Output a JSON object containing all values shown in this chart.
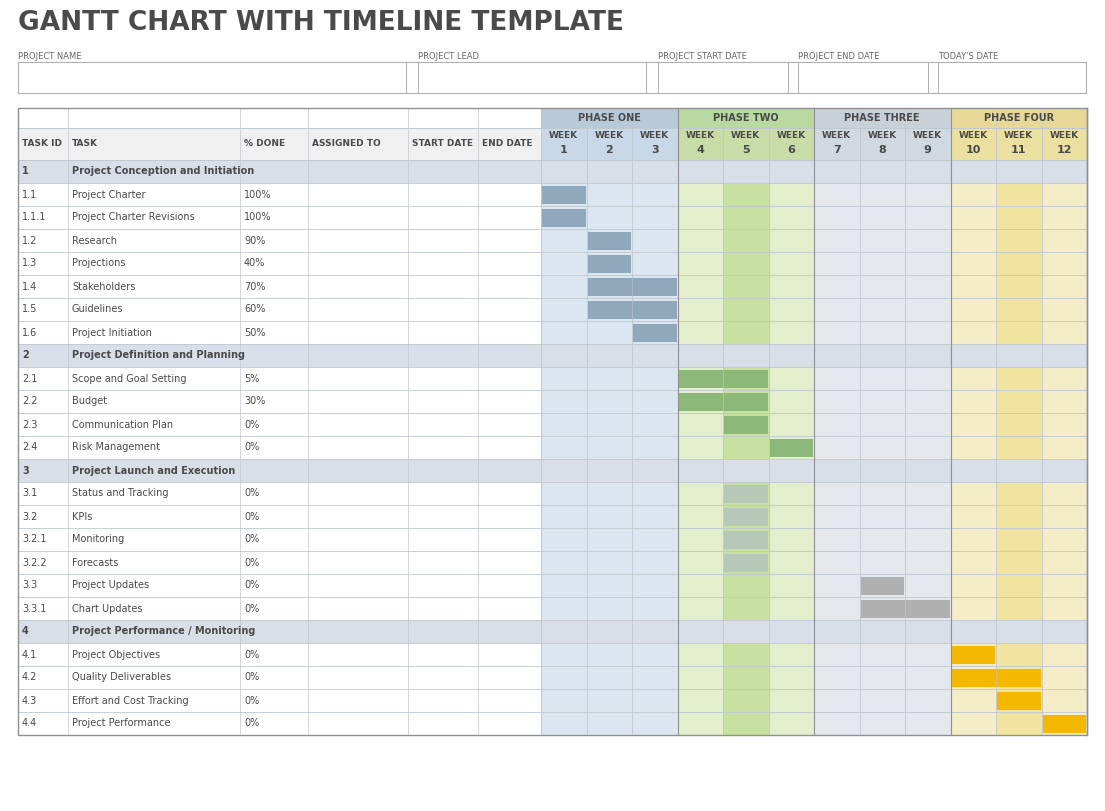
{
  "title": "GANTT CHART WITH TIMELINE TEMPLATE",
  "title_fontsize": 20,
  "title_color": "#3a3a3a",
  "header_labels": [
    "PROJECT NAME",
    "PROJECT LEAD",
    "PROJECT START DATE",
    "PROJECT END DATE",
    "TODAY’S DATE"
  ],
  "tasks": [
    {
      "id": "1",
      "task": "Project Conception and Initiation",
      "pct": "",
      "is_phase": true,
      "bar_week": null,
      "bar_span": 0,
      "bar_color": null
    },
    {
      "id": "1.1",
      "task": "Project Charter",
      "pct": "100%",
      "is_phase": false,
      "bar_week": 1,
      "bar_span": 1,
      "bar_color": "#8fa8bc"
    },
    {
      "id": "1.1.1",
      "task": "Project Charter Revisions",
      "pct": "100%",
      "is_phase": false,
      "bar_week": 1,
      "bar_span": 1,
      "bar_color": "#8fa8bc"
    },
    {
      "id": "1.2",
      "task": "Research",
      "pct": "90%",
      "is_phase": false,
      "bar_week": 2,
      "bar_span": 1,
      "bar_color": "#8fa8bc"
    },
    {
      "id": "1.3",
      "task": "Projections",
      "pct": "40%",
      "is_phase": false,
      "bar_week": 2,
      "bar_span": 1,
      "bar_color": "#8fa8bc"
    },
    {
      "id": "1.4",
      "task": "Stakeholders",
      "pct": "70%",
      "is_phase": false,
      "bar_week": 2,
      "bar_span": 2,
      "bar_color": "#8fa8bc"
    },
    {
      "id": "1.5",
      "task": "Guidelines",
      "pct": "60%",
      "is_phase": false,
      "bar_week": 2,
      "bar_span": 2,
      "bar_color": "#8fa8bc"
    },
    {
      "id": "1.6",
      "task": "Project Initiation",
      "pct": "50%",
      "is_phase": false,
      "bar_week": 3,
      "bar_span": 1,
      "bar_color": "#8fa8bc"
    },
    {
      "id": "2",
      "task": "Project Definition and Planning",
      "pct": "",
      "is_phase": true,
      "bar_week": null,
      "bar_span": 0,
      "bar_color": null
    },
    {
      "id": "2.1",
      "task": "Scope and Goal Setting",
      "pct": "5%",
      "is_phase": false,
      "bar_week": 4,
      "bar_span": 2,
      "bar_color": "#8cb87a"
    },
    {
      "id": "2.2",
      "task": "Budget",
      "pct": "30%",
      "is_phase": false,
      "bar_week": 4,
      "bar_span": 2,
      "bar_color": "#8cb87a"
    },
    {
      "id": "2.3",
      "task": "Communication Plan",
      "pct": "0%",
      "is_phase": false,
      "bar_week": 5,
      "bar_span": 1,
      "bar_color": "#8cb87a"
    },
    {
      "id": "2.4",
      "task": "Risk Management",
      "pct": "0%",
      "is_phase": false,
      "bar_week": 6,
      "bar_span": 1,
      "bar_color": "#8cb87a"
    },
    {
      "id": "3",
      "task": "Project Launch and Execution",
      "pct": "",
      "is_phase": true,
      "bar_week": null,
      "bar_span": 0,
      "bar_color": null
    },
    {
      "id": "3.1",
      "task": "Status and Tracking",
      "pct": "0%",
      "is_phase": false,
      "bar_week": 5,
      "bar_span": 1,
      "bar_color": "#b8c8b8"
    },
    {
      "id": "3.2",
      "task": "KPIs",
      "pct": "0%",
      "is_phase": false,
      "bar_week": 5,
      "bar_span": 1,
      "bar_color": "#b8c8b8"
    },
    {
      "id": "3.2.1",
      "task": "Monitoring",
      "pct": "0%",
      "is_phase": false,
      "bar_week": 5,
      "bar_span": 1,
      "bar_color": "#b8c8b8"
    },
    {
      "id": "3.2.2",
      "task": "Forecasts",
      "pct": "0%",
      "is_phase": false,
      "bar_week": 5,
      "bar_span": 1,
      "bar_color": "#b8c8b8"
    },
    {
      "id": "3.3",
      "task": "Project Updates",
      "pct": "0%",
      "is_phase": false,
      "bar_week": 8,
      "bar_span": 1,
      "bar_color": "#b0b0b0"
    },
    {
      "id": "3.3.1",
      "task": "Chart Updates",
      "pct": "0%",
      "is_phase": false,
      "bar_week": 8,
      "bar_span": 2,
      "bar_color": "#b0b0b0"
    },
    {
      "id": "4",
      "task": "Project Performance / Monitoring",
      "pct": "",
      "is_phase": true,
      "bar_week": null,
      "bar_span": 0,
      "bar_color": null
    },
    {
      "id": "4.1",
      "task": "Project Objectives",
      "pct": "0%",
      "is_phase": false,
      "bar_week": 10,
      "bar_span": 1,
      "bar_color": "#f5b800"
    },
    {
      "id": "4.2",
      "task": "Quality Deliverables",
      "pct": "0%",
      "is_phase": false,
      "bar_week": 10,
      "bar_span": 2,
      "bar_color": "#f5b800"
    },
    {
      "id": "4.3",
      "task": "Effort and Cost Tracking",
      "pct": "0%",
      "is_phase": false,
      "bar_week": 11,
      "bar_span": 1,
      "bar_color": "#f5b800"
    },
    {
      "id": "4.4",
      "task": "Project Performance",
      "pct": "0%",
      "is_phase": false,
      "bar_week": 12,
      "bar_span": 1,
      "bar_color": "#f5b800"
    }
  ],
  "phase_names": [
    "PHASE ONE",
    "PHASE TWO",
    "PHASE THREE",
    "PHASE FOUR"
  ],
  "phase_colors": [
    "#b8c9d9",
    "#b8d9a0",
    "#c8d0d8",
    "#e8d898"
  ],
  "phase_header_row_colors": [
    "#c8d8e8",
    "#c8dca8",
    "#d0d8e0",
    "#ece0a0"
  ],
  "week_cell_bg": [
    "#dce6f0",
    "#dce6f0",
    "#dce6f0",
    "#e2eecc",
    "#c8e0a0",
    "#e2eecc",
    "#e4e8ed",
    "#e4e8ed",
    "#e4e8ed",
    "#f5ecc8",
    "#f0e4a0",
    "#f5ecc8"
  ],
  "phase_row_bg": "#d8dfe8",
  "normal_row_bg": "#ffffff",
  "grid_color": "#c0c8d0",
  "text_dark": "#4a4a4a",
  "text_small": "#666666"
}
